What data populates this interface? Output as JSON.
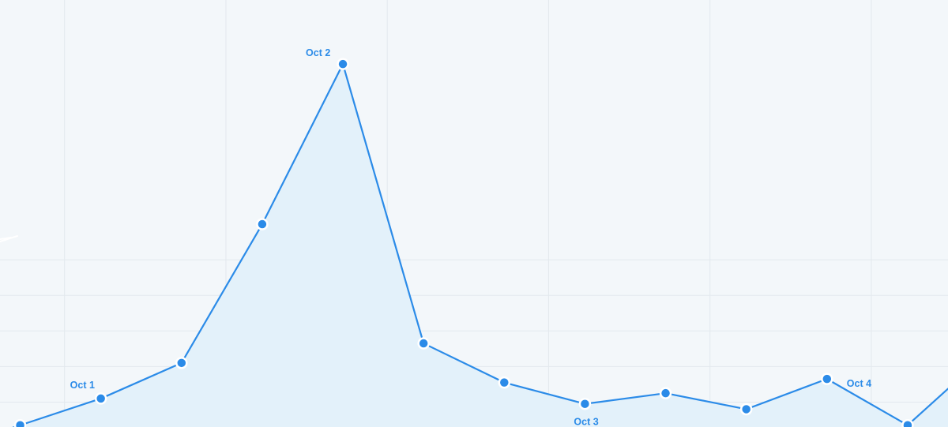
{
  "chart_data": {
    "type": "area",
    "x": [
      "",
      "",
      "",
      "",
      "",
      "",
      "",
      "",
      "",
      "",
      "",
      "",
      ""
    ],
    "series": [
      {
        "values": [
          0.5,
          8,
          18,
          57,
          102,
          23.5,
          12.5,
          6.5,
          9.5,
          5,
          13.5,
          0.5,
          21
        ]
      }
    ],
    "x_range": [
      -0.25,
      11.5
    ],
    "ylim": [
      0,
      120
    ],
    "y_gridlines": [
      7,
      17,
      27,
      37,
      47
    ],
    "x_gridlines": [
      0.55,
      2.55,
      4.55,
      6.55,
      8.55,
      10.55
    ],
    "annotations": [
      {
        "text": "Oct 1",
        "point_index": 1
      },
      {
        "text": "Oct 2",
        "point_index": 4
      },
      {
        "text": "Oct 3",
        "point_index": 7
      },
      {
        "text": "Oct 4",
        "point_index": 10
      }
    ],
    "grid": true,
    "legend": "none",
    "colors": {
      "line": "#2b8be8",
      "area": "#e3f1fa",
      "grid": "#e3e9ee",
      "background": "#f3f7fa"
    }
  }
}
